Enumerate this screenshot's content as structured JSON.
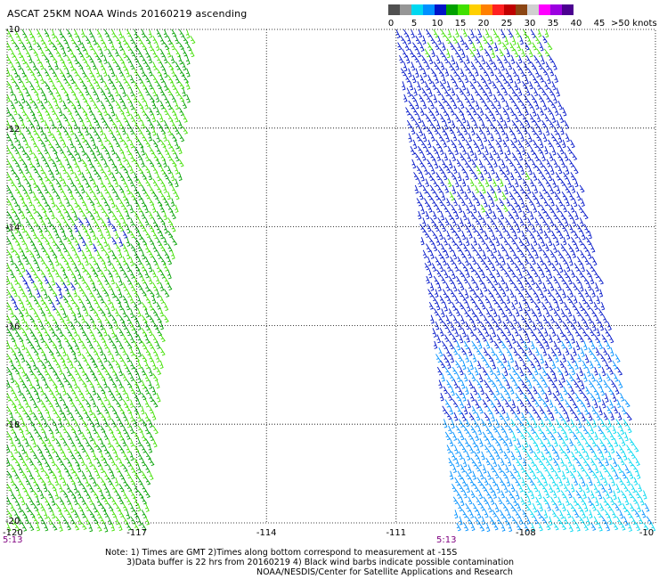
{
  "title": "ASCAT 25KM NOAA Winds 20160219 ascending",
  "legend": {
    "labels": [
      "0",
      "5",
      "10",
      "15",
      "20",
      "25",
      "30",
      "35",
      "40",
      "45"
    ],
    "unit_label": ">50 knots",
    "colors": [
      "#505050",
      "#969696",
      "#00d8f0",
      "#0090ff",
      "#0014c8",
      "#00a000",
      "#40e000",
      "#ffd000",
      "#ff8000",
      "#ff2020",
      "#c00000",
      "#8b4513",
      "#d0d0d0",
      "#ff00ff",
      "#9b00e0",
      "#4b0090"
    ]
  },
  "map": {
    "lat_labels": [
      "-10",
      "-12",
      "-14",
      "-16",
      "-18",
      "-20"
    ],
    "lon_labels": [
      "-120",
      "-117",
      "-114",
      "-111",
      "-108",
      "-10"
    ],
    "lat_range": [
      -20,
      -10
    ],
    "lon_range": [
      -120,
      -105
    ],
    "time_labels": [
      "5:13",
      "5:13"
    ],
    "time_color": "#800080",
    "grid": "dotted",
    "swaths": [
      {
        "name": "west",
        "lat_range": [
          -20,
          -10
        ],
        "lon_edges_top": [
          -120,
          -115.7
        ],
        "lon_edges_bottom": [
          -120,
          -116.8
        ],
        "dominant_speed_kt": "15-20",
        "colors": [
          "#00a000",
          "#40e000",
          "#0014c8"
        ]
      },
      {
        "name": "east",
        "lat_range": [
          -20,
          -10
        ],
        "lon_edges_top": [
          -111.0,
          -107.5
        ],
        "lon_edges_bottom": [
          -109.6,
          -105.1
        ],
        "dominant_speed_kt": "10-15",
        "colors": [
          "#0014c8",
          "#0090ff",
          "#00d8f0",
          "#40e000"
        ]
      }
    ]
  },
  "notes": {
    "line1": "Note: 1) Times are GMT 2)Times along bottom correspond to measurement at -15S",
    "line2": "3)Data buffer is 22 hrs from 20160219 4) Black wind barbs indicate possible contamination",
    "line3": "NOAA/NESDIS/Center for Satellite Applications and Research"
  }
}
